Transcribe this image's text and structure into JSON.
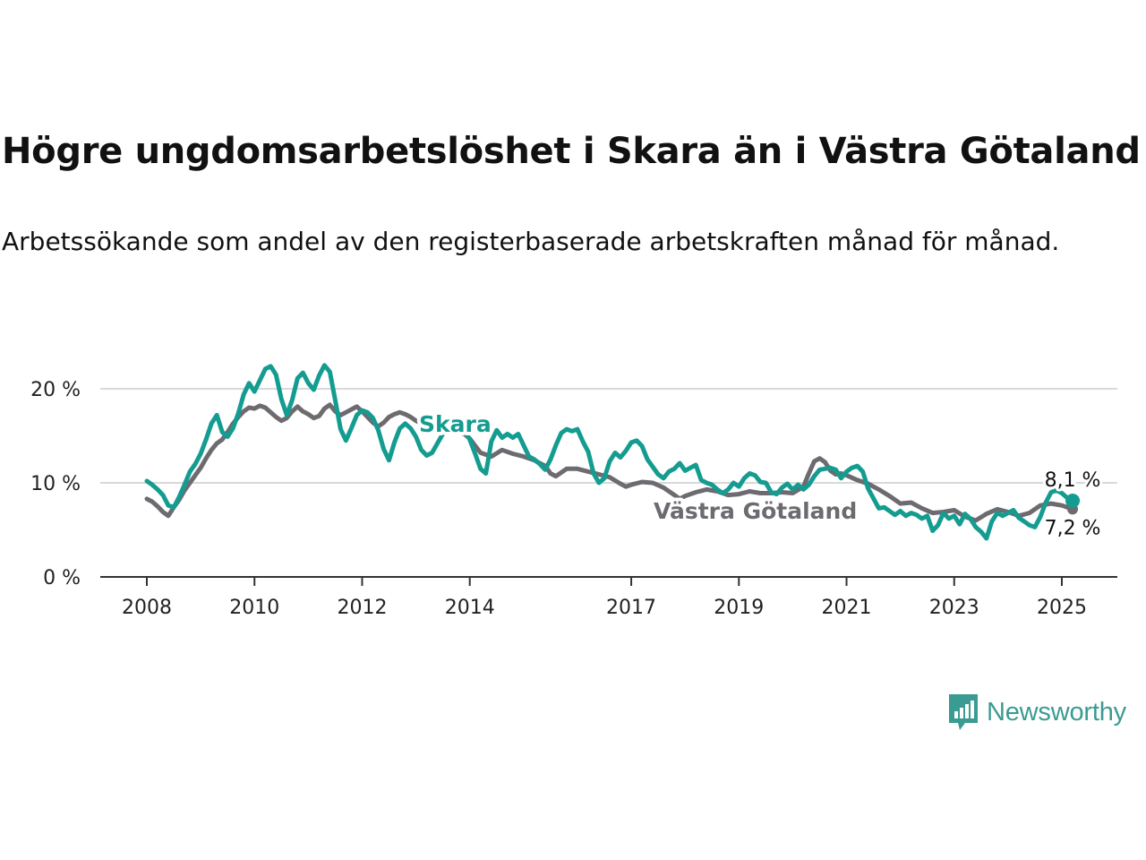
{
  "chart_data": {
    "type": "line",
    "title": "Högre ungdomsarbetslöshet i Skara än i Västra Götaland",
    "subtitle": "Arbetssökande som andel av den registerbaserade arbetskraften månad för månad.",
    "x_unit": "year",
    "y_ticks": [
      {
        "value": 0,
        "label": "0 %"
      },
      {
        "value": 10,
        "label": "10 %"
      },
      {
        "value": 20,
        "label": "20 %"
      }
    ],
    "x_ticks": [
      {
        "value": 2008,
        "label": "2008"
      },
      {
        "value": 2010,
        "label": "2010"
      },
      {
        "value": 2012,
        "label": "2012"
      },
      {
        "value": 2014,
        "label": "2014"
      },
      {
        "value": 2017,
        "label": "2017"
      },
      {
        "value": 2019,
        "label": "2019"
      },
      {
        "value": 2021,
        "label": "2021"
      },
      {
        "value": 2023,
        "label": "2023"
      },
      {
        "value": 2025,
        "label": "2025"
      }
    ],
    "xlim": [
      2007.2,
      2026.1
    ],
    "ylim": [
      0,
      21
    ],
    "grid": true,
    "series": [
      {
        "name": "Västra Götaland",
        "color": "#6d6a70",
        "end_label": "7,2 %",
        "points": [
          [
            2008.0,
            8.3
          ],
          [
            2008.1,
            8.0
          ],
          [
            2008.2,
            7.5
          ],
          [
            2008.3,
            6.9
          ],
          [
            2008.4,
            6.5
          ],
          [
            2008.5,
            7.4
          ],
          [
            2008.6,
            8.2
          ],
          [
            2008.7,
            9.2
          ],
          [
            2008.8,
            10.0
          ],
          [
            2008.9,
            10.8
          ],
          [
            2009.0,
            11.6
          ],
          [
            2009.1,
            12.6
          ],
          [
            2009.2,
            13.5
          ],
          [
            2009.3,
            14.2
          ],
          [
            2009.4,
            14.6
          ],
          [
            2009.5,
            15.4
          ],
          [
            2009.6,
            16.3
          ],
          [
            2009.7,
            17.0
          ],
          [
            2009.8,
            17.6
          ],
          [
            2009.9,
            18.0
          ],
          [
            2010.0,
            17.9
          ],
          [
            2010.1,
            18.2
          ],
          [
            2010.2,
            18.0
          ],
          [
            2010.3,
            17.5
          ],
          [
            2010.4,
            17.0
          ],
          [
            2010.5,
            16.6
          ],
          [
            2010.6,
            16.9
          ],
          [
            2010.7,
            17.6
          ],
          [
            2010.8,
            18.1
          ],
          [
            2010.9,
            17.6
          ],
          [
            2011.0,
            17.3
          ],
          [
            2011.1,
            16.9
          ],
          [
            2011.2,
            17.1
          ],
          [
            2011.3,
            17.9
          ],
          [
            2011.4,
            18.3
          ],
          [
            2011.5,
            17.6
          ],
          [
            2011.6,
            17.2
          ],
          [
            2011.7,
            17.5
          ],
          [
            2011.8,
            17.8
          ],
          [
            2011.9,
            18.1
          ],
          [
            2012.0,
            17.6
          ],
          [
            2012.1,
            17.0
          ],
          [
            2012.2,
            16.4
          ],
          [
            2012.3,
            16.0
          ],
          [
            2012.4,
            16.4
          ],
          [
            2012.5,
            17.0
          ],
          [
            2012.6,
            17.3
          ],
          [
            2012.7,
            17.5
          ],
          [
            2012.8,
            17.3
          ],
          [
            2012.9,
            17.0
          ],
          [
            2013.0,
            16.6
          ],
          [
            2013.3,
            15.8
          ],
          [
            2013.6,
            15.7
          ],
          [
            2013.9,
            15.2
          ],
          [
            2014.0,
            14.7
          ],
          [
            2014.2,
            13.2
          ],
          [
            2014.4,
            12.8
          ],
          [
            2014.6,
            13.5
          ],
          [
            2014.8,
            13.1
          ],
          [
            2015.0,
            12.8
          ],
          [
            2015.2,
            12.4
          ],
          [
            2015.4,
            11.8
          ],
          [
            2015.5,
            11.0
          ],
          [
            2015.6,
            10.7
          ],
          [
            2015.8,
            11.5
          ],
          [
            2016.0,
            11.5
          ],
          [
            2016.2,
            11.2
          ],
          [
            2016.4,
            10.9
          ],
          [
            2016.6,
            10.6
          ],
          [
            2016.8,
            9.9
          ],
          [
            2016.9,
            9.6
          ],
          [
            2017.0,
            9.8
          ],
          [
            2017.2,
            10.1
          ],
          [
            2017.4,
            10.0
          ],
          [
            2017.6,
            9.5
          ],
          [
            2017.8,
            8.7
          ],
          [
            2017.9,
            8.3
          ],
          [
            2018.0,
            8.6
          ],
          [
            2018.2,
            9.0
          ],
          [
            2018.4,
            9.3
          ],
          [
            2018.6,
            9.1
          ],
          [
            2018.8,
            8.7
          ],
          [
            2019.0,
            8.8
          ],
          [
            2019.2,
            9.1
          ],
          [
            2019.4,
            8.9
          ],
          [
            2019.6,
            8.9
          ],
          [
            2019.8,
            9.0
          ],
          [
            2020.0,
            8.9
          ],
          [
            2020.2,
            9.6
          ],
          [
            2020.3,
            11.0
          ],
          [
            2020.4,
            12.3
          ],
          [
            2020.5,
            12.6
          ],
          [
            2020.6,
            12.2
          ],
          [
            2020.7,
            11.3
          ],
          [
            2020.8,
            10.9
          ],
          [
            2020.9,
            11.0
          ],
          [
            2021.0,
            10.8
          ],
          [
            2021.2,
            10.3
          ],
          [
            2021.4,
            9.9
          ],
          [
            2021.6,
            9.3
          ],
          [
            2021.8,
            8.6
          ],
          [
            2022.0,
            7.8
          ],
          [
            2022.2,
            7.9
          ],
          [
            2022.4,
            7.3
          ],
          [
            2022.6,
            6.8
          ],
          [
            2022.8,
            6.9
          ],
          [
            2023.0,
            7.1
          ],
          [
            2023.2,
            6.4
          ],
          [
            2023.4,
            6.0
          ],
          [
            2023.6,
            6.7
          ],
          [
            2023.8,
            7.2
          ],
          [
            2024.0,
            6.9
          ],
          [
            2024.2,
            6.5
          ],
          [
            2024.4,
            6.8
          ],
          [
            2024.6,
            7.6
          ],
          [
            2024.8,
            7.8
          ],
          [
            2025.0,
            7.6
          ],
          [
            2025.2,
            7.2
          ]
        ]
      },
      {
        "name": "Skara",
        "color": "#149c91",
        "end_label": "8,1 %",
        "points": [
          [
            2008.0,
            10.2
          ],
          [
            2008.1,
            9.8
          ],
          [
            2008.2,
            9.3
          ],
          [
            2008.3,
            8.7
          ],
          [
            2008.4,
            7.6
          ],
          [
            2008.5,
            7.4
          ],
          [
            2008.6,
            8.5
          ],
          [
            2008.7,
            9.8
          ],
          [
            2008.8,
            11.2
          ],
          [
            2008.9,
            12.0
          ],
          [
            2009.0,
            13.1
          ],
          [
            2009.1,
            14.6
          ],
          [
            2009.2,
            16.3
          ],
          [
            2009.3,
            17.2
          ],
          [
            2009.4,
            15.4
          ],
          [
            2009.5,
            14.9
          ],
          [
            2009.6,
            15.8
          ],
          [
            2009.7,
            17.4
          ],
          [
            2009.8,
            19.4
          ],
          [
            2009.9,
            20.6
          ],
          [
            2010.0,
            19.7
          ],
          [
            2010.1,
            20.9
          ],
          [
            2010.2,
            22.1
          ],
          [
            2010.3,
            22.4
          ],
          [
            2010.4,
            21.5
          ],
          [
            2010.5,
            18.9
          ],
          [
            2010.6,
            17.2
          ],
          [
            2010.7,
            18.8
          ],
          [
            2010.8,
            21.1
          ],
          [
            2010.9,
            21.7
          ],
          [
            2011.0,
            20.6
          ],
          [
            2011.1,
            19.9
          ],
          [
            2011.2,
            21.4
          ],
          [
            2011.3,
            22.5
          ],
          [
            2011.4,
            21.8
          ],
          [
            2011.5,
            18.8
          ],
          [
            2011.6,
            15.7
          ],
          [
            2011.7,
            14.5
          ],
          [
            2011.8,
            15.8
          ],
          [
            2011.9,
            17.2
          ],
          [
            2012.0,
            17.7
          ],
          [
            2012.1,
            17.5
          ],
          [
            2012.2,
            16.9
          ],
          [
            2012.3,
            15.6
          ],
          [
            2012.4,
            13.6
          ],
          [
            2012.5,
            12.4
          ],
          [
            2012.6,
            14.3
          ],
          [
            2012.7,
            15.8
          ],
          [
            2012.8,
            16.3
          ],
          [
            2012.9,
            15.8
          ],
          [
            2013.0,
            14.9
          ],
          [
            2013.1,
            13.5
          ],
          [
            2013.2,
            12.9
          ],
          [
            2013.3,
            13.2
          ],
          [
            2013.5,
            15.2
          ],
          [
            2013.7,
            16.1
          ],
          [
            2013.9,
            15.6
          ],
          [
            2014.0,
            14.6
          ],
          [
            2014.1,
            13.1
          ],
          [
            2014.2,
            11.5
          ],
          [
            2014.3,
            11.0
          ],
          [
            2014.4,
            14.4
          ],
          [
            2014.5,
            15.6
          ],
          [
            2014.6,
            14.8
          ],
          [
            2014.7,
            15.2
          ],
          [
            2014.8,
            14.8
          ],
          [
            2014.9,
            15.2
          ],
          [
            2015.0,
            14.0
          ],
          [
            2015.1,
            12.8
          ],
          [
            2015.2,
            12.5
          ],
          [
            2015.3,
            12.0
          ],
          [
            2015.4,
            11.4
          ],
          [
            2015.5,
            12.5
          ],
          [
            2015.6,
            14.0
          ],
          [
            2015.7,
            15.3
          ],
          [
            2015.8,
            15.7
          ],
          [
            2015.9,
            15.5
          ],
          [
            2016.0,
            15.7
          ],
          [
            2016.1,
            14.4
          ],
          [
            2016.2,
            13.3
          ],
          [
            2016.3,
            11.0
          ],
          [
            2016.4,
            10.0
          ],
          [
            2016.5,
            10.5
          ],
          [
            2016.6,
            12.3
          ],
          [
            2016.7,
            13.2
          ],
          [
            2016.8,
            12.7
          ],
          [
            2016.9,
            13.4
          ],
          [
            2017.0,
            14.3
          ],
          [
            2017.1,
            14.5
          ],
          [
            2017.2,
            13.9
          ],
          [
            2017.3,
            12.5
          ],
          [
            2017.4,
            11.7
          ],
          [
            2017.5,
            10.9
          ],
          [
            2017.6,
            10.5
          ],
          [
            2017.7,
            11.2
          ],
          [
            2017.8,
            11.5
          ],
          [
            2017.9,
            12.1
          ],
          [
            2018.0,
            11.3
          ],
          [
            2018.1,
            11.6
          ],
          [
            2018.2,
            11.9
          ],
          [
            2018.3,
            10.3
          ],
          [
            2018.4,
            10.0
          ],
          [
            2018.5,
            9.8
          ],
          [
            2018.6,
            9.3
          ],
          [
            2018.7,
            8.9
          ],
          [
            2018.8,
            9.3
          ],
          [
            2018.9,
            10.0
          ],
          [
            2019.0,
            9.6
          ],
          [
            2019.1,
            10.5
          ],
          [
            2019.2,
            11.0
          ],
          [
            2019.3,
            10.8
          ],
          [
            2019.4,
            10.1
          ],
          [
            2019.5,
            10.0
          ],
          [
            2019.6,
            9.0
          ],
          [
            2019.7,
            8.8
          ],
          [
            2019.8,
            9.5
          ],
          [
            2019.9,
            9.9
          ],
          [
            2020.0,
            9.3
          ],
          [
            2020.1,
            9.8
          ],
          [
            2020.2,
            9.3
          ],
          [
            2020.3,
            9.8
          ],
          [
            2020.4,
            10.7
          ],
          [
            2020.5,
            11.4
          ],
          [
            2020.6,
            11.5
          ],
          [
            2020.7,
            11.6
          ],
          [
            2020.8,
            11.4
          ],
          [
            2020.9,
            10.5
          ],
          [
            2021.0,
            11.2
          ],
          [
            2021.1,
            11.6
          ],
          [
            2021.2,
            11.8
          ],
          [
            2021.3,
            11.2
          ],
          [
            2021.4,
            9.4
          ],
          [
            2021.6,
            7.3
          ],
          [
            2021.7,
            7.4
          ],
          [
            2021.8,
            7.0
          ],
          [
            2021.9,
            6.6
          ],
          [
            2022.0,
            7.0
          ],
          [
            2022.1,
            6.5
          ],
          [
            2022.2,
            6.8
          ],
          [
            2022.3,
            6.6
          ],
          [
            2022.4,
            6.2
          ],
          [
            2022.5,
            6.5
          ],
          [
            2022.6,
            4.9
          ],
          [
            2022.7,
            5.5
          ],
          [
            2022.8,
            6.8
          ],
          [
            2022.9,
            6.2
          ],
          [
            2023.0,
            6.5
          ],
          [
            2023.1,
            5.6
          ],
          [
            2023.2,
            6.7
          ],
          [
            2023.3,
            6.2
          ],
          [
            2023.4,
            5.3
          ],
          [
            2023.5,
            4.8
          ],
          [
            2023.6,
            4.1
          ],
          [
            2023.7,
            5.9
          ],
          [
            2023.8,
            6.8
          ],
          [
            2023.9,
            6.5
          ],
          [
            2024.0,
            6.8
          ],
          [
            2024.1,
            7.1
          ],
          [
            2024.2,
            6.3
          ],
          [
            2024.3,
            5.9
          ],
          [
            2024.4,
            5.5
          ],
          [
            2024.5,
            5.3
          ],
          [
            2024.6,
            6.4
          ],
          [
            2024.7,
            7.9
          ],
          [
            2024.8,
            9.0
          ],
          [
            2024.9,
            9.2
          ],
          [
            2025.0,
            8.9
          ],
          [
            2025.1,
            8.4
          ],
          [
            2025.2,
            8.1
          ]
        ]
      }
    ]
  },
  "brand": {
    "name": "Newsworthy",
    "color": "#3a9b93"
  }
}
